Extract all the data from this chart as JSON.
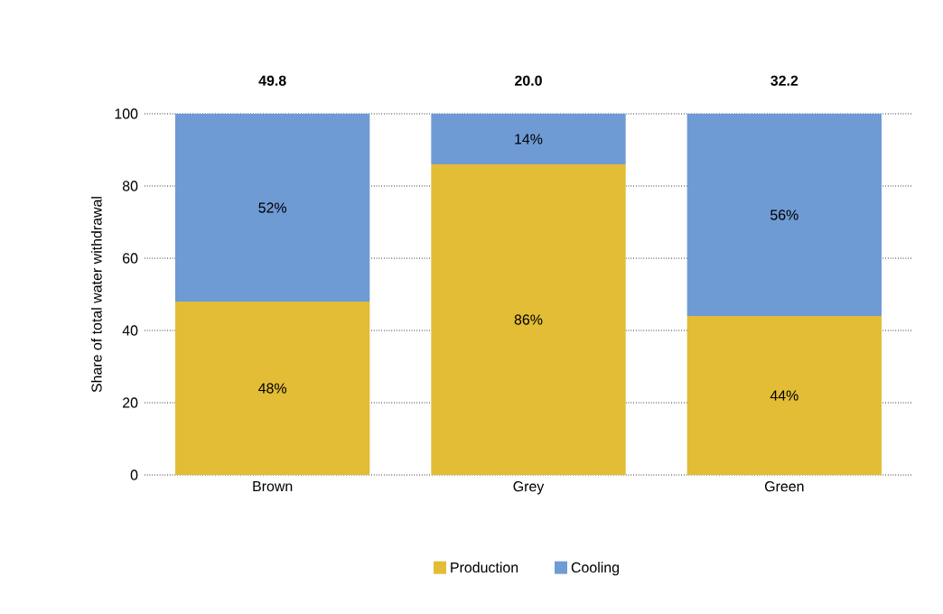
{
  "chart_data": {
    "type": "bar",
    "stacked": true,
    "ylabel": "Share of total water withdrawal",
    "categories": [
      "Brown",
      "Grey",
      "Green"
    ],
    "series": [
      {
        "name": "Production",
        "color": "#e2bd35",
        "values": [
          48,
          86,
          44
        ],
        "value_labels": [
          "48%",
          "86%",
          "44%"
        ]
      },
      {
        "name": "Cooling",
        "color": "#6f9bd5",
        "values": [
          52,
          14,
          56
        ],
        "value_labels": [
          "52%",
          "14%",
          "56%"
        ]
      }
    ],
    "annotations": [
      "49.8",
      "20.0",
      "32.2"
    ],
    "ylim": [
      0,
      100
    ],
    "yticks": [
      0,
      20,
      40,
      60,
      80,
      100
    ],
    "grid": "y",
    "legend": "bottom"
  }
}
